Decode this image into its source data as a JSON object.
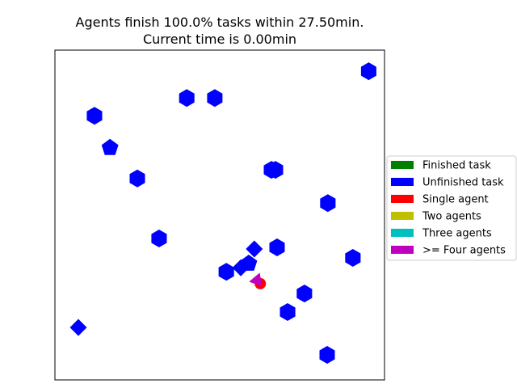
{
  "chart_data": {
    "type": "scatter",
    "title_line1": "Agents finish 100.0% tasks within 27.50min.",
    "title_line2": "Current time is 0.00min",
    "xlim": [
      0,
      1
    ],
    "ylim": [
      0,
      1
    ],
    "grid": false,
    "axis_ticks": false,
    "legend": {
      "placement": "center-right",
      "entries": [
        {
          "label": "Finished task",
          "color": "#008000"
        },
        {
          "label": "Unfinished task",
          "color": "#0000ff"
        },
        {
          "label": "Single agent",
          "color": "#ff0000"
        },
        {
          "label": "Two agents",
          "color": "#bfbf00"
        },
        {
          "label": "Three agents",
          "color": "#00bfbf"
        },
        {
          "label": ">= Four agents",
          "color": "#bf00bf"
        }
      ]
    },
    "tasks": [
      {
        "x": 0.952,
        "y": 0.936,
        "status": "unfinished",
        "marker": "hexagon"
      },
      {
        "x": 0.4,
        "y": 0.855,
        "status": "unfinished",
        "marker": "hexagon"
      },
      {
        "x": 0.485,
        "y": 0.855,
        "status": "unfinished",
        "marker": "hexagon"
      },
      {
        "x": 0.12,
        "y": 0.801,
        "status": "unfinished",
        "marker": "hexagon"
      },
      {
        "x": 0.167,
        "y": 0.704,
        "status": "unfinished",
        "marker": "pentagon"
      },
      {
        "x": 0.25,
        "y": 0.611,
        "status": "unfinished",
        "marker": "hexagon"
      },
      {
        "x": 0.657,
        "y": 0.637,
        "status": "unfinished",
        "marker": "hexagon"
      },
      {
        "x": 0.669,
        "y": 0.637,
        "status": "unfinished",
        "marker": "hexagon"
      },
      {
        "x": 0.828,
        "y": 0.536,
        "status": "unfinished",
        "marker": "hexagon"
      },
      {
        "x": 0.316,
        "y": 0.429,
        "status": "unfinished",
        "marker": "hexagon"
      },
      {
        "x": 0.674,
        "y": 0.402,
        "status": "unfinished",
        "marker": "hexagon"
      },
      {
        "x": 0.904,
        "y": 0.37,
        "status": "unfinished",
        "marker": "hexagon"
      },
      {
        "x": 0.605,
        "y": 0.397,
        "status": "unfinished",
        "marker": "diamond"
      },
      {
        "x": 0.588,
        "y": 0.353,
        "status": "unfinished",
        "marker": "pentagon"
      },
      {
        "x": 0.564,
        "y": 0.34,
        "status": "unfinished",
        "marker": "diamond"
      },
      {
        "x": 0.52,
        "y": 0.328,
        "status": "unfinished",
        "marker": "hexagon"
      },
      {
        "x": 0.757,
        "y": 0.262,
        "status": "unfinished",
        "marker": "hexagon"
      },
      {
        "x": 0.706,
        "y": 0.206,
        "status": "unfinished",
        "marker": "hexagon"
      },
      {
        "x": 0.071,
        "y": 0.159,
        "status": "unfinished",
        "marker": "diamond"
      },
      {
        "x": 0.826,
        "y": 0.076,
        "status": "unfinished",
        "marker": "hexagon"
      }
    ],
    "agents": [
      {
        "x": 0.623,
        "y": 0.292,
        "group": "single",
        "marker": "circle"
      },
      {
        "x": 0.613,
        "y": 0.302,
        "group": "four_plus",
        "marker": "triangle"
      }
    ]
  }
}
